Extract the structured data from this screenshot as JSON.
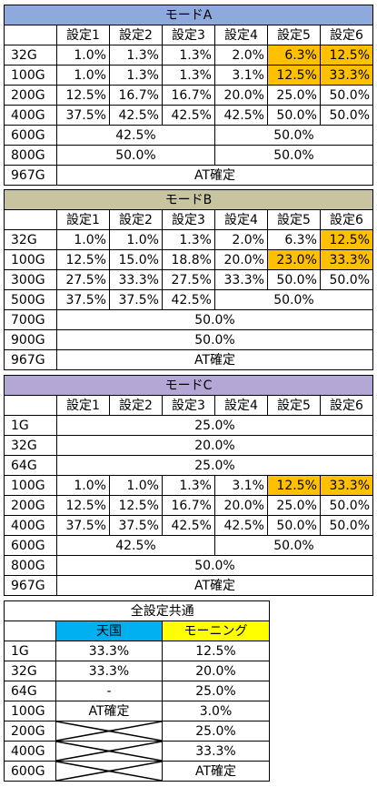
{
  "modeA": {
    "title": "モードA",
    "headers": [
      "設定1",
      "設定2",
      "設定3",
      "設定4",
      "設定5",
      "設定6"
    ],
    "rows": [
      {
        "label": "32G",
        "cells": [
          "1.0%",
          "1.3%",
          "1.3%",
          "2.0%",
          "6.3%",
          "12.5%"
        ]
      },
      {
        "label": "100G",
        "cells": [
          "1.0%",
          "1.3%",
          "1.3%",
          "3.1%",
          "12.5%",
          "33.3%"
        ]
      },
      {
        "label": "200G",
        "cells": [
          "12.5%",
          "16.7%",
          "16.7%",
          "20.0%",
          "25.0%",
          "50.0%"
        ]
      },
      {
        "label": "400G",
        "cells": [
          "37.5%",
          "42.5%",
          "42.5%",
          "42.5%",
          "50.0%",
          "50.0%"
        ]
      }
    ],
    "row600": {
      "label": "600G",
      "left": "42.5%",
      "right": "50.0%"
    },
    "row800": {
      "label": "800G",
      "left": "50.0%",
      "right": "50.0%"
    },
    "row967": {
      "label": "967G",
      "value": "AT確定"
    }
  },
  "modeB": {
    "title": "モードB",
    "headers": [
      "設定1",
      "設定2",
      "設定3",
      "設定4",
      "設定5",
      "設定6"
    ],
    "rows": [
      {
        "label": "32G",
        "cells": [
          "1.0%",
          "1.0%",
          "1.3%",
          "2.0%",
          "6.3%",
          "12.5%"
        ]
      },
      {
        "label": "100G",
        "cells": [
          "12.5%",
          "15.0%",
          "18.8%",
          "20.0%",
          "23.0%",
          "33.3%"
        ]
      },
      {
        "label": "300G",
        "cells": [
          "27.5%",
          "33.3%",
          "27.5%",
          "33.3%",
          "50.0%",
          "50.0%"
        ]
      }
    ],
    "row500": {
      "label": "500G",
      "cells": [
        "37.5%",
        "37.5%",
        "42.5%"
      ],
      "right": "50.0%"
    },
    "row700": {
      "label": "700G",
      "value": "50.0%"
    },
    "row900": {
      "label": "900G",
      "value": "50.0%"
    },
    "row967": {
      "label": "967G",
      "value": "AT確定"
    }
  },
  "modeC": {
    "title": "モードC",
    "headers": [
      "設定1",
      "設定2",
      "設定3",
      "設定4",
      "設定5",
      "設定6"
    ],
    "single": [
      {
        "label": "1G",
        "value": "25.0%"
      },
      {
        "label": "32G",
        "value": "20.0%"
      },
      {
        "label": "64G",
        "value": "25.0%"
      }
    ],
    "rows": [
      {
        "label": "100G",
        "cells": [
          "1.0%",
          "1.0%",
          "1.3%",
          "3.1%",
          "12.5%",
          "33.3%"
        ]
      },
      {
        "label": "200G",
        "cells": [
          "12.5%",
          "12.5%",
          "16.7%",
          "20.0%",
          "25.0%",
          "50.0%"
        ]
      },
      {
        "label": "400G",
        "cells": [
          "37.5%",
          "37.5%",
          "42.5%",
          "42.5%",
          "50.0%",
          "50.0%"
        ]
      }
    ],
    "row600": {
      "label": "600G",
      "left": "42.5%",
      "right": "50.0%"
    },
    "row800": {
      "label": "800G",
      "value": "50.0%"
    },
    "row967": {
      "label": "967G",
      "value": "AT確定"
    }
  },
  "common": {
    "title": "全設定共通",
    "col1": "天国",
    "col2": "モーニング",
    "rows": [
      {
        "label": "1G",
        "a": "33.3%",
        "b": "12.5%"
      },
      {
        "label": "32G",
        "a": "33.3%",
        "b": "20.0%"
      },
      {
        "label": "64G",
        "a": "-",
        "b": "25.0%"
      },
      {
        "label": "100G",
        "a": "AT確定",
        "b": "3.0%"
      },
      {
        "label": "200G",
        "a": "",
        "b": "25.0%"
      },
      {
        "label": "400G",
        "a": "",
        "b": "33.3%"
      },
      {
        "label": "600G",
        "a": "",
        "b": "AT確定"
      }
    ]
  },
  "colors": {
    "modeA": "#8ea9db",
    "modeB": "#c9c4a0",
    "modeC": "#b4a7d6",
    "highlight": "#ffc000",
    "tengoku": "#00b0f0",
    "morning": "#ffff00"
  }
}
